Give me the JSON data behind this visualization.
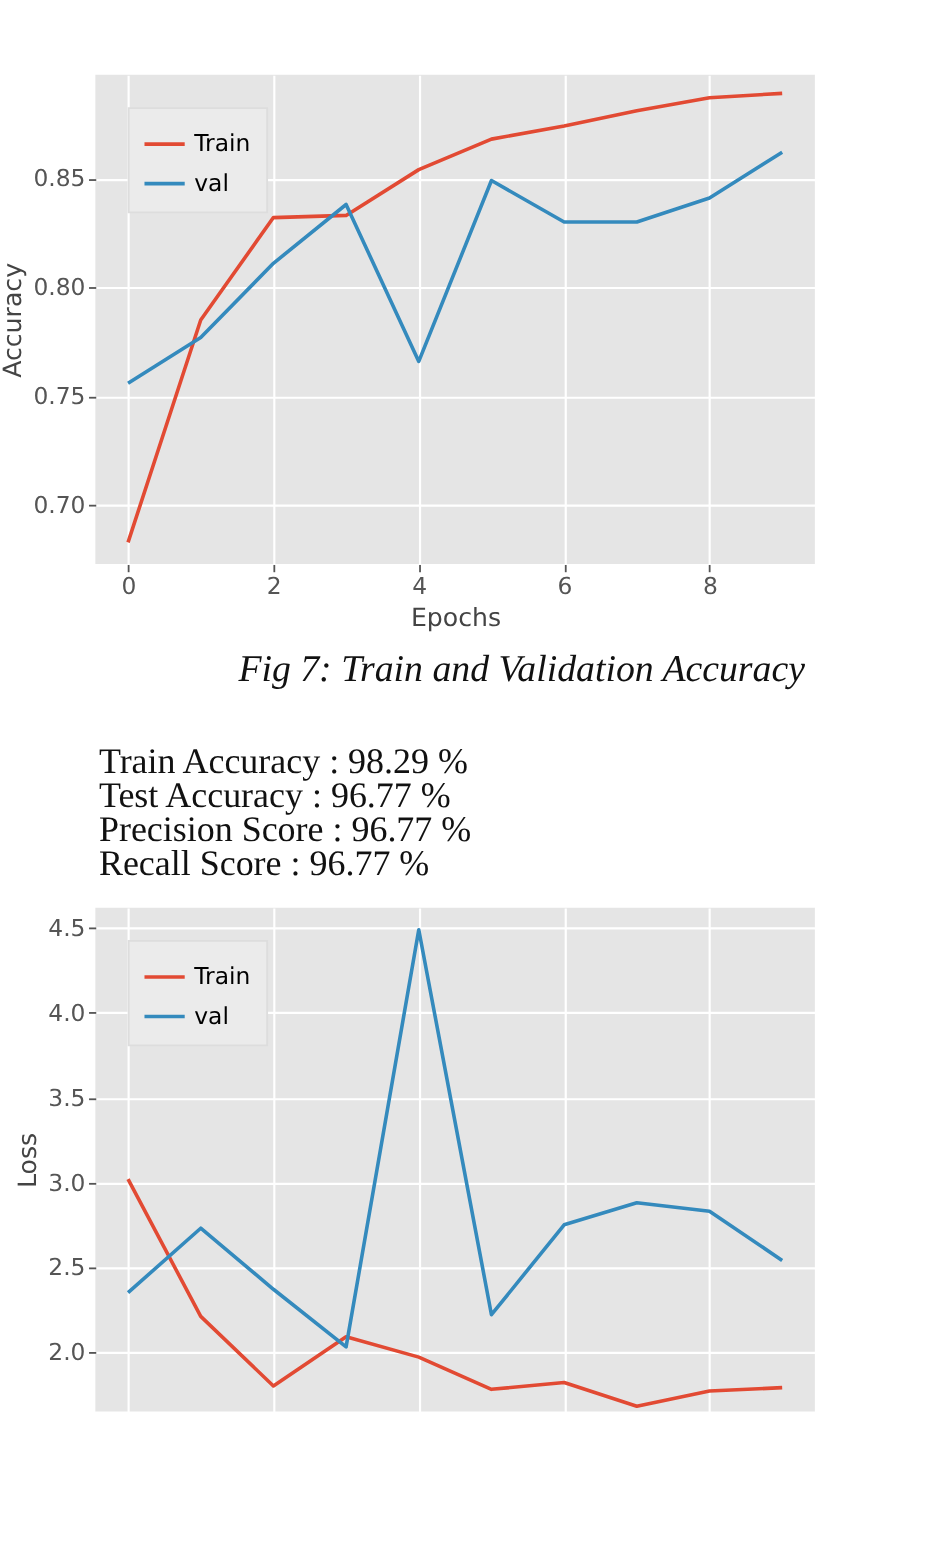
{
  "chart_data": [
    {
      "type": "line",
      "xlabel": "Epochs",
      "ylabel": "Accuracy",
      "x": [
        0,
        1,
        2,
        3,
        4,
        5,
        6,
        7,
        8,
        9
      ],
      "series": [
        {
          "name": "Train",
          "color": "#e24a33",
          "values": [
            0.683,
            0.785,
            0.832,
            0.833,
            0.854,
            0.868,
            0.874,
            0.881,
            0.887,
            0.889
          ]
        },
        {
          "name": "val",
          "color": "#348abd",
          "values": [
            0.756,
            0.777,
            0.811,
            0.838,
            0.766,
            0.849,
            0.83,
            0.83,
            0.841,
            0.862
          ]
        }
      ],
      "xlim": [
        -0.45,
        9.45
      ],
      "xticks": [
        0,
        2,
        4,
        6,
        8
      ],
      "ylim": [
        0.673,
        0.8975
      ],
      "yticks": [
        {
          "value": 0.7,
          "label": "0.70"
        },
        0.75,
        {
          "value": 0.8,
          "label": "0.80"
        },
        0.85
      ],
      "grid": true,
      "legend": "top left",
      "marker": "none",
      "line_style": "solid",
      "annotations": [
        "Fig 7:  Train and Validation Accuracy",
        "Train Accuracy  : 98.29 %",
        "Test Accuracy   : 96.77 %",
        "Precision Score : 96.77 %",
        "Recall Score    : 96.77 %"
      ]
    },
    {
      "type": "line",
      "ylabel": "Loss",
      "x": [
        0,
        1,
        2,
        3,
        4,
        5,
        6,
        7,
        8,
        9
      ],
      "series": [
        {
          "name": "Train",
          "color": "#e24a33",
          "values": [
            3.02,
            2.21,
            1.8,
            2.09,
            1.97,
            1.78,
            1.82,
            1.68,
            1.77,
            1.79
          ]
        },
        {
          "name": "val",
          "color": "#348abd",
          "values": [
            2.35,
            2.73,
            2.37,
            2.03,
            4.49,
            2.22,
            2.75,
            2.88,
            2.83,
            2.54
          ]
        }
      ],
      "xlim": [
        -0.45,
        9.45
      ],
      "xticks": [
        0,
        2,
        4,
        6,
        8
      ],
      "ylim": [
        1.65,
        4.62
      ],
      "yticks": [
        {
          "value": 2,
          "label": "2.0"
        },
        2.5,
        {
          "value": 3,
          "label": "3.0"
        },
        3.5,
        {
          "value": 4,
          "label": "4.0"
        },
        4.5
      ],
      "grid": true,
      "legend": "top left",
      "marker": "none",
      "line_style": "solid",
      "tick_labels": "y"
    }
  ]
}
